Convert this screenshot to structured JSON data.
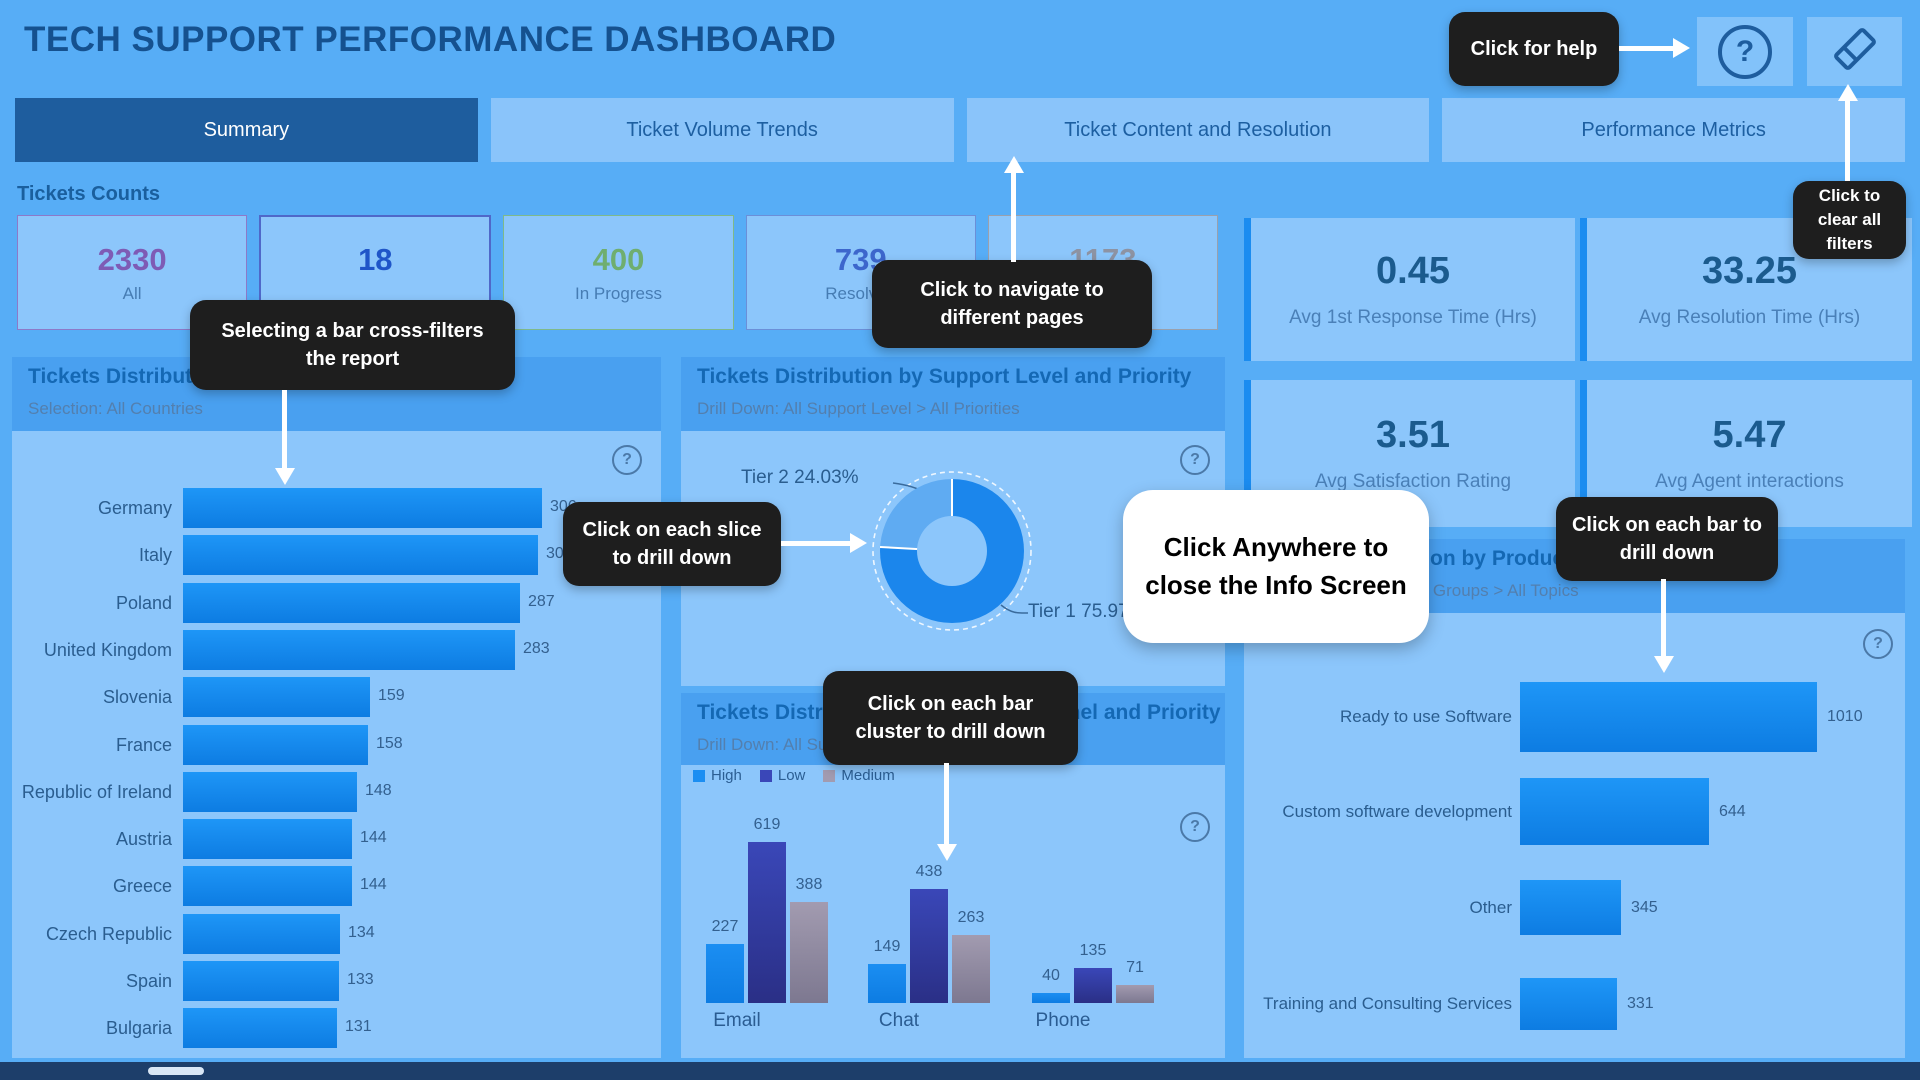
{
  "title": "TECH SUPPORT PERFORMANCE DASHBOARD",
  "tabs": [
    {
      "label": "Summary",
      "active": true
    },
    {
      "label": "Ticket Volume Trends",
      "active": false
    },
    {
      "label": "Ticket Content and Resolution",
      "active": false
    },
    {
      "label": "Performance Metrics",
      "active": false
    }
  ],
  "kpi_section_label": "Tickets Counts",
  "kpi_cards": [
    {
      "value": "2330",
      "label": "All",
      "color": "#7e5bb5",
      "border": "#8d79c8"
    },
    {
      "value": "18",
      "label": "",
      "color": "#1f55c8",
      "border": "#4f68c9"
    },
    {
      "value": "400",
      "label": "In Progress",
      "color": "#6fae6f",
      "border": "#7fb98a"
    },
    {
      "value": "739",
      "label": "Resolved",
      "color": "#3c66cc",
      "border": "#6b8fd8"
    },
    {
      "value": "1173",
      "label": "",
      "color": "#8d93a3",
      "border": "#9aa0ac"
    }
  ],
  "metrics": [
    {
      "value": "0.45",
      "label": "Avg 1st Response Time (Hrs)"
    },
    {
      "value": "33.25",
      "label": "Avg Resolution Time (Hrs)"
    },
    {
      "value": "3.51",
      "label": "Avg Satisfaction Rating"
    },
    {
      "value": "5.47",
      "label": "Avg Agent interactions"
    }
  ],
  "tooltips": {
    "help": "Click for help",
    "clear_filters": "Click to clear all filters",
    "navigate": "Click to navigate to different pages",
    "cross_filter": "Selecting a bar cross-filters the report",
    "slice": "Click on each slice to drill down",
    "cluster": "Click on each bar cluster to drill down",
    "bar_drill": "Click on each bar to drill down",
    "close_info": "Click Anywhere to close the Info Screen"
  },
  "colors": {
    "accent": "#1b8cf0",
    "bar_blue": "#1590f5",
    "high": "#1b8ef2",
    "low": "#2e3f9e",
    "medium": "#9b8da5",
    "tier1": "#1b86ec",
    "tier2": "#5fabf2",
    "tooltip_bg": "#1e1e1e",
    "active_tab": "#1e5d9e"
  },
  "chart_data": [
    {
      "id": "tickets-by-country",
      "type": "bar",
      "orientation": "horizontal",
      "title": "Tickets Distribution by Country",
      "subtitle": "Selection: All Countries",
      "categories": [
        "Germany",
        "Italy",
        "Poland",
        "United Kingdom",
        "Slovenia",
        "France",
        "Republic of Ireland",
        "Austria",
        "Greece",
        "Czech Republic",
        "Spain",
        "Bulgaria"
      ],
      "values": [
        306,
        303,
        287,
        283,
        159,
        158,
        148,
        144,
        144,
        134,
        133,
        131
      ],
      "bar_color": "#1590f5"
    },
    {
      "id": "tickets-by-support-level",
      "type": "pie",
      "title": "Tickets Distribution by Support Level and Priority",
      "subtitle": "Drill Down: All Support Level > All Priorities",
      "slices": [
        {
          "label": "Tier 1",
          "pct": 75.97,
          "color": "#1b86ec"
        },
        {
          "label": "Tier 2",
          "pct": 24.03,
          "color": "#5fabf2"
        }
      ],
      "labels": [
        "Tier 2 24.03%",
        "Tier 1 75.97%"
      ]
    },
    {
      "id": "tickets-by-channel",
      "type": "bar",
      "title": "Tickets Distribution by Support Channel and Priority",
      "subtitle": "Drill Down: All Support Channels > All Priorities",
      "categories": [
        "Email",
        "Chat",
        "Phone"
      ],
      "series": [
        {
          "name": "High",
          "color": "#1b8ef2",
          "color2": "#0d7ce2",
          "values": [
            227,
            149,
            40
          ]
        },
        {
          "name": "Low",
          "color": "#3a47b8",
          "color2": "#2a2f86",
          "values": [
            619,
            438,
            135
          ]
        },
        {
          "name": "Medium",
          "color": "#a29bb0",
          "color2": "#7d7890",
          "values": [
            388,
            263,
            71
          ]
        }
      ]
    },
    {
      "id": "tickets-by-product-group",
      "type": "bar",
      "orientation": "horizontal",
      "title": "Tickets Distribution by Product Group and Topic",
      "subtitle": "Drill Down: All Product Groups > All Topics",
      "categories": [
        "Ready to use Software",
        "Custom software development",
        "Other",
        "Training and Consulting Services"
      ],
      "values": [
        1010,
        644,
        345,
        331
      ],
      "bar_color": "#1590f5"
    }
  ]
}
